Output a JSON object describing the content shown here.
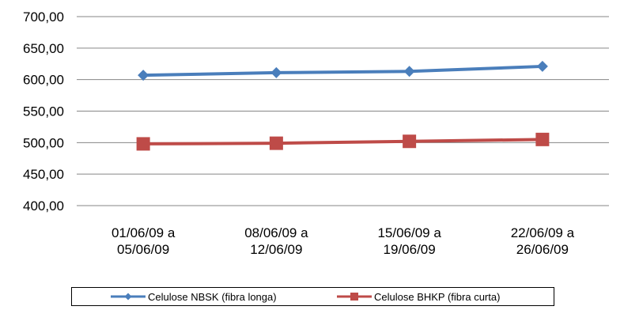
{
  "chart_data": {
    "type": "line",
    "title": "",
    "xlabel": "",
    "ylabel": "",
    "categories": [
      [
        "01/06/09 a",
        "05/06/09"
      ],
      [
        "08/06/09 a",
        "12/06/09"
      ],
      [
        "15/06/09 a",
        "19/06/09"
      ],
      [
        "22/06/09 a",
        "26/06/09"
      ]
    ],
    "ylim": [
      400,
      700
    ],
    "yticks": [
      "400,00",
      "450,00",
      "500,00",
      "550,00",
      "600,00",
      "650,00",
      "700,00"
    ],
    "grid": true,
    "legend_position": "bottom",
    "series": [
      {
        "name": "Celulose NBSK (fibra longa)",
        "values": [
          607,
          611,
          613,
          621
        ],
        "color": "#4a7ebb",
        "marker": "diamond"
      },
      {
        "name": "Celulose BHKP (fibra curta)",
        "values": [
          498,
          499,
          502,
          505
        ],
        "color": "#be4b48",
        "marker": "square"
      }
    ]
  }
}
